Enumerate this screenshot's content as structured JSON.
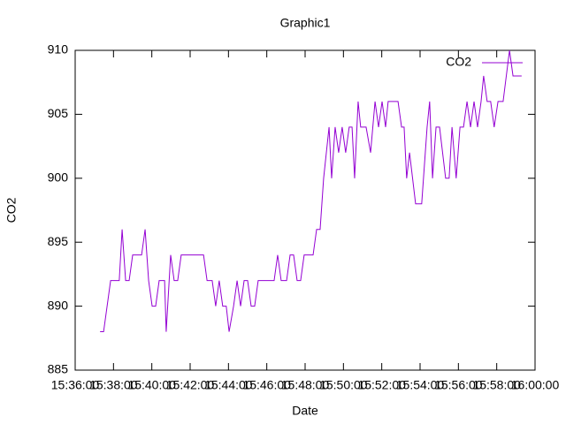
{
  "chart_data": {
    "type": "line",
    "title": "Graphic1",
    "xlabel": "Date",
    "ylabel": "CO2",
    "legend": "top right",
    "grid": false,
    "xlim": [
      "15:36:00",
      "16:00:00"
    ],
    "xticks": [
      "15:36:00",
      "15:38:00",
      "15:40:00",
      "15:42:00",
      "15:44:00",
      "15:46:00",
      "15:48:00",
      "15:50:00",
      "15:52:00",
      "15:54:00",
      "15:56:00",
      "15:58:00",
      "16:00:00"
    ],
    "ylim": [
      885,
      910
    ],
    "yticks": [
      885,
      890,
      895,
      900,
      905,
      910
    ],
    "x": [
      "15:37:18",
      "15:37:29",
      "15:37:51",
      "15:38:18",
      "15:38:27",
      "15:38:38",
      "15:38:49",
      "15:39:00",
      "15:39:28",
      "15:39:39",
      "15:39:50",
      "15:40:01",
      "15:40:12",
      "15:40:23",
      "15:40:40",
      "15:40:45",
      "15:40:59",
      "15:41:10",
      "15:41:21",
      "15:41:32",
      "15:42:42",
      "15:42:53",
      "15:43:09",
      "15:43:20",
      "15:43:31",
      "15:43:42",
      "15:43:53",
      "15:44:02",
      "15:44:16",
      "15:44:27",
      "15:44:38",
      "15:44:49",
      "15:45:00",
      "15:45:11",
      "15:45:22",
      "15:45:33",
      "15:46:23",
      "15:46:34",
      "15:46:45",
      "15:47:02",
      "15:47:13",
      "15:47:24",
      "15:47:35",
      "15:47:46",
      "15:47:57",
      "15:48:25",
      "15:48:36",
      "15:48:47",
      "15:48:58",
      "15:49:15",
      "15:49:23",
      "15:49:34",
      "15:49:45",
      "15:49:56",
      "15:50:07",
      "15:50:18",
      "15:50:27",
      "15:50:35",
      "15:50:46",
      "15:50:54",
      "15:51:11",
      "15:51:25",
      "15:51:39",
      "15:51:50",
      "15:52:01",
      "15:52:12",
      "15:52:20",
      "15:52:51",
      "15:53:02",
      "15:53:10",
      "15:53:18",
      "15:53:27",
      "15:53:46",
      "15:54:05",
      "15:54:22",
      "15:54:30",
      "15:54:39",
      "15:54:50",
      "15:55:01",
      "15:55:20",
      "15:55:31",
      "15:55:40",
      "15:55:53",
      "15:56:05",
      "15:56:16",
      "15:56:27",
      "15:56:38",
      "15:56:49",
      "15:57:00",
      "15:57:11",
      "15:57:19",
      "15:57:30",
      "15:57:41",
      "15:57:52",
      "15:58:04",
      "15:58:20",
      "15:58:40",
      "15:58:51",
      "15:59:18"
    ],
    "series": [
      {
        "name": "CO2",
        "color": "#9400d3",
        "values": [
          888,
          888,
          892,
          892,
          896,
          892,
          892,
          894,
          894,
          896,
          892,
          890,
          890,
          892,
          892,
          888,
          894,
          892,
          892,
          894,
          894,
          892,
          892,
          890,
          892,
          890,
          890,
          888,
          890,
          892,
          890,
          892,
          892,
          890,
          890,
          892,
          892,
          894,
          892,
          892,
          894,
          894,
          892,
          892,
          894,
          894,
          896,
          896,
          900,
          904,
          900,
          904,
          902,
          904,
          902,
          904,
          904,
          900,
          906,
          904,
          904,
          902,
          906,
          904,
          906,
          904,
          906,
          906,
          904,
          904,
          900,
          902,
          898,
          898,
          904,
          906,
          900,
          904,
          904,
          900,
          900,
          904,
          900,
          904,
          904,
          906,
          904,
          906,
          904,
          906,
          908,
          906,
          906,
          904,
          906,
          906,
          910,
          908,
          908
        ]
      }
    ]
  }
}
